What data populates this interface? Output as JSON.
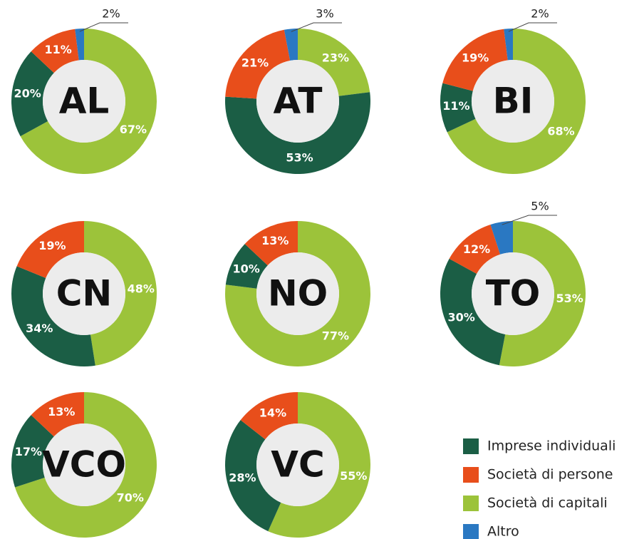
{
  "chart_data": [
    {
      "type": "donut",
      "title": "AL",
      "values": [
        20,
        11,
        67,
        2
      ],
      "value_labels": [
        "20%",
        "11%",
        "67%",
        "2%"
      ]
    },
    {
      "type": "donut",
      "title": "AT",
      "values": [
        53,
        21,
        23,
        3
      ],
      "value_labels": [
        "53%",
        "21%",
        "23%",
        "3%"
      ]
    },
    {
      "type": "donut",
      "title": "BI",
      "values": [
        11,
        19,
        68,
        2
      ],
      "value_labels": [
        "11%",
        "19%",
        "68%",
        "2%"
      ]
    },
    {
      "type": "donut",
      "title": "CN",
      "values": [
        34,
        19,
        48,
        null
      ],
      "value_labels": [
        "34%",
        "19%",
        "48%",
        null
      ]
    },
    {
      "type": "donut",
      "title": "NO",
      "values": [
        10,
        13,
        77,
        null
      ],
      "value_labels": [
        "10%",
        "13%",
        "77%",
        null
      ]
    },
    {
      "type": "donut",
      "title": "TO",
      "values": [
        30,
        12,
        53,
        5
      ],
      "value_labels": [
        "30%",
        "12%",
        "53%",
        "5%"
      ]
    },
    {
      "type": "donut",
      "title": "VCO",
      "values": [
        17,
        13,
        70,
        null
      ],
      "value_labels": [
        "17%",
        "13%",
        "70%",
        null
      ]
    },
    {
      "type": "donut",
      "title": "VC",
      "values": [
        28,
        14,
        55,
        null
      ],
      "value_labels": [
        "28%",
        "14%",
        "55%",
        null
      ]
    }
  ],
  "legend": {
    "categories": [
      "Imprese individuali",
      "Società di persone",
      "Società di capitali",
      "Altro"
    ],
    "colors": [
      "#1b5e45",
      "#e84e1b",
      "#9cc33a",
      "#2a78c2"
    ]
  }
}
